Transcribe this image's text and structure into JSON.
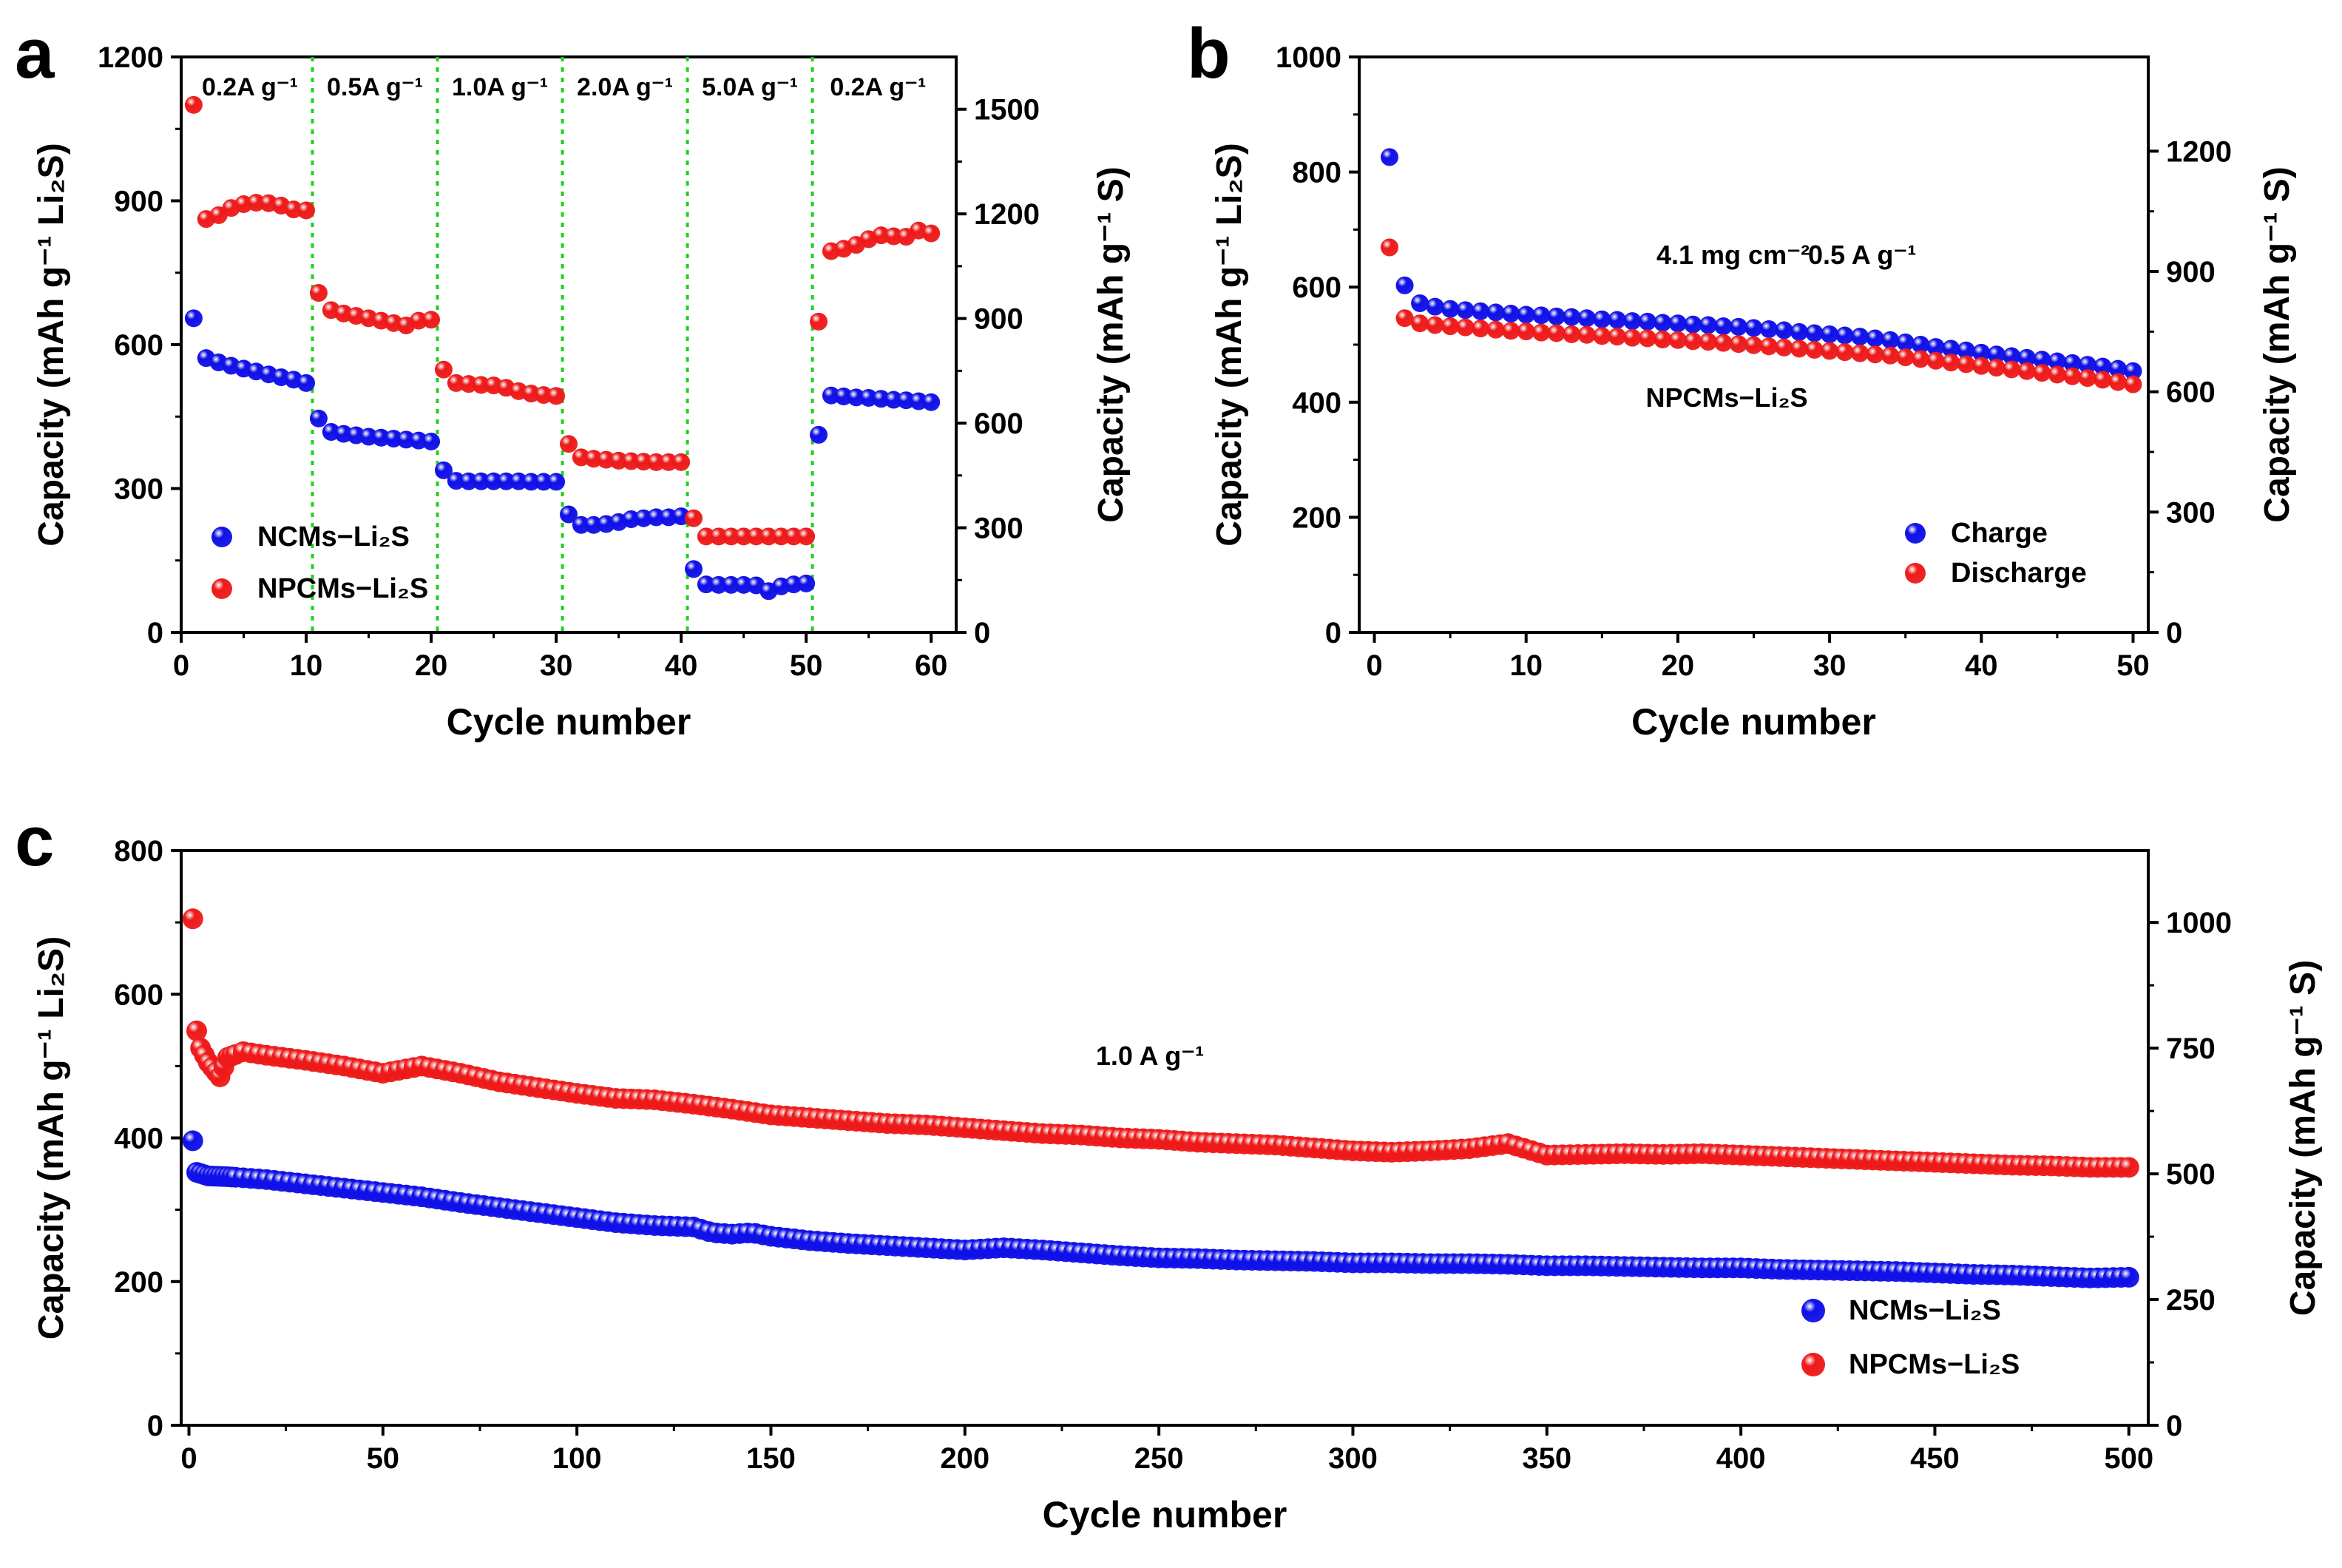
{
  "chart_data": [
    {
      "panel": "a",
      "type": "scatter",
      "xlabel": "Cycle number",
      "ylabel": "Capacity (mAh g⁻¹ Li₂S)",
      "ylabel_right": "Capacity (mAh g⁻¹ S)",
      "xlim": [
        0,
        62
      ],
      "ylim": [
        0,
        1200
      ],
      "ylim_right": [
        0,
        1650
      ],
      "xticks": [
        0,
        10,
        20,
        30,
        40,
        50,
        60
      ],
      "yticks": [
        0,
        300,
        600,
        900,
        1200
      ],
      "yticks_right": [
        0,
        300,
        600,
        900,
        1200,
        1500
      ],
      "rate_dividers": [
        10.5,
        20.5,
        30.5,
        40.5,
        50.5
      ],
      "rate_labels": [
        "0.2A g⁻¹",
        "0.5A g⁻¹",
        "1.0A g⁻¹",
        "2.0A g⁻¹",
        "5.0A g⁻¹",
        "0.2A g⁻¹"
      ],
      "legend": [
        "NCMs−Li₂S",
        "NPCMs−Li₂S"
      ],
      "legend_position": "lower-left",
      "series": [
        {
          "name": "NCMs−Li₂S",
          "color": "#1010e8",
          "x": [
            1,
            2,
            3,
            4,
            5,
            6,
            7,
            8,
            9,
            10,
            11,
            12,
            13,
            14,
            15,
            16,
            17,
            18,
            19,
            20,
            21,
            22,
            23,
            24,
            25,
            26,
            27,
            28,
            29,
            30,
            31,
            32,
            33,
            34,
            35,
            36,
            37,
            38,
            39,
            40,
            41,
            42,
            43,
            44,
            45,
            46,
            47,
            48,
            49,
            50,
            51,
            52,
            53,
            54,
            55,
            56,
            57,
            58,
            59,
            60
          ],
          "values": [
            655,
            572,
            563,
            556,
            550,
            544,
            538,
            532,
            527,
            520,
            446,
            418,
            414,
            411,
            408,
            406,
            404,
            402,
            400,
            398,
            338,
            316,
            315,
            315,
            315,
            315,
            315,
            314,
            314,
            314,
            246,
            224,
            224,
            226,
            230,
            236,
            238,
            240,
            240,
            242,
            132,
            100,
            99,
            99,
            99,
            98,
            86,
            96,
            100,
            102,
            412,
            494,
            492,
            490,
            489,
            487,
            485,
            484,
            482,
            480
          ]
        },
        {
          "name": "NPCMs−Li₂S",
          "color": "#ee1a1a",
          "x": [
            1,
            2,
            3,
            4,
            5,
            6,
            7,
            8,
            9,
            10,
            11,
            12,
            13,
            14,
            15,
            16,
            17,
            18,
            19,
            20,
            21,
            22,
            23,
            24,
            25,
            26,
            27,
            28,
            29,
            30,
            31,
            32,
            33,
            34,
            35,
            36,
            37,
            38,
            39,
            40,
            41,
            42,
            43,
            44,
            45,
            46,
            47,
            48,
            49,
            50,
            51,
            52,
            53,
            54,
            55,
            56,
            57,
            58,
            59,
            60
          ],
          "values": [
            1100,
            862,
            870,
            885,
            893,
            896,
            895,
            890,
            882,
            880,
            708,
            672,
            665,
            660,
            655,
            650,
            645,
            640,
            650,
            652,
            548,
            520,
            518,
            516,
            515,
            510,
            503,
            498,
            495,
            493,
            393,
            365,
            362,
            360,
            358,
            357,
            356,
            355,
            355,
            355,
            238,
            200,
            200,
            200,
            200,
            200,
            200,
            200,
            200,
            200,
            648,
            795,
            800,
            808,
            820,
            828,
            826,
            825,
            838,
            832
          ]
        }
      ]
    },
    {
      "panel": "b",
      "type": "scatter",
      "xlabel": "Cycle number",
      "ylabel": "Capacity (mAh g⁻¹ Li₂S)",
      "ylabel_right": "Capacity (mAh g⁻¹ S)",
      "xlim": [
        -1,
        51
      ],
      "ylim": [
        0,
        1000
      ],
      "ylim_right": [
        0,
        1435
      ],
      "xticks": [
        0,
        10,
        20,
        30,
        40,
        50
      ],
      "yticks": [
        0,
        200,
        400,
        600,
        800,
        1000
      ],
      "yticks_right": [
        0,
        300,
        600,
        900,
        1200
      ],
      "annotations": [
        "4.1 mg cm⁻²",
        "0.5 A g⁻¹",
        "NPCMs−Li₂S"
      ],
      "legend": [
        "Charge",
        "Discharge"
      ],
      "legend_position": "lower-right",
      "series": [
        {
          "name": "Charge",
          "color": "#1010e8",
          "x": [
            1,
            2,
            3,
            4,
            5,
            6,
            7,
            8,
            9,
            10,
            11,
            12,
            13,
            14,
            15,
            16,
            17,
            18,
            19,
            20,
            21,
            22,
            23,
            24,
            25,
            26,
            27,
            28,
            29,
            30,
            31,
            32,
            33,
            34,
            35,
            36,
            37,
            38,
            39,
            40,
            41,
            42,
            43,
            44,
            45,
            46,
            47,
            48,
            49,
            50
          ],
          "values": [
            826,
            603,
            572,
            566,
            562,
            560,
            558,
            556,
            554,
            552,
            551,
            549,
            548,
            546,
            544,
            543,
            541,
            540,
            538,
            537,
            535,
            534,
            532,
            531,
            529,
            527,
            525,
            522,
            520,
            518,
            516,
            514,
            511,
            508,
            504,
            500,
            496,
            493,
            490,
            486,
            483,
            480,
            477,
            474,
            471,
            468,
            465,
            462,
            458,
            454
          ]
        },
        {
          "name": "Discharge",
          "color": "#ee1a1a",
          "x": [
            1,
            2,
            3,
            4,
            5,
            6,
            7,
            8,
            9,
            10,
            11,
            12,
            13,
            14,
            15,
            16,
            17,
            18,
            19,
            20,
            21,
            22,
            23,
            24,
            25,
            26,
            27,
            28,
            29,
            30,
            31,
            32,
            33,
            34,
            35,
            36,
            37,
            38,
            39,
            40,
            41,
            42,
            43,
            44,
            45,
            46,
            47,
            48,
            49,
            50
          ],
          "values": [
            669,
            546,
            537,
            534,
            532,
            530,
            528,
            526,
            524,
            523,
            521,
            520,
            518,
            517,
            515,
            514,
            512,
            511,
            509,
            508,
            506,
            505,
            503,
            501,
            499,
            497,
            495,
            493,
            491,
            489,
            487,
            485,
            483,
            481,
            478,
            475,
            472,
            469,
            466,
            463,
            460,
            457,
            454,
            451,
            448,
            445,
            442,
            439,
            435,
            431
          ]
        }
      ]
    },
    {
      "panel": "c",
      "type": "scatter",
      "xlabel": "Cycle number",
      "ylabel": "Capacity (mAh g⁻¹ Li₂S)",
      "ylabel_right": "Capacity (mAh g⁻¹ S)",
      "xlim": [
        -2,
        505
      ],
      "ylim": [
        0,
        800
      ],
      "ylim_right": [
        0,
        1143
      ],
      "xticks": [
        0,
        50,
        100,
        150,
        200,
        250,
        300,
        350,
        400,
        450,
        500
      ],
      "yticks": [
        0,
        200,
        400,
        600,
        800
      ],
      "yticks_right": [
        0,
        250,
        500,
        750,
        1000
      ],
      "annotations": [
        "1.0 A g⁻¹"
      ],
      "legend": [
        "NCMs−Li₂S",
        "NPCMs−Li₂S"
      ],
      "legend_position": "lower-right",
      "series": [
        {
          "name": "NCMs−Li₂S",
          "color": "#1010e8",
          "point_every": 2,
          "x": [
            1,
            2,
            5,
            10,
            20,
            30,
            40,
            50,
            60,
            70,
            80,
            90,
            100,
            110,
            120,
            130,
            135,
            140,
            145,
            150,
            160,
            170,
            180,
            190,
            200,
            210,
            220,
            230,
            240,
            250,
            260,
            270,
            280,
            290,
            300,
            310,
            320,
            330,
            340,
            350,
            360,
            370,
            380,
            390,
            400,
            410,
            420,
            430,
            440,
            450,
            460,
            470,
            480,
            490,
            500
          ],
          "values": [
            396,
            352,
            347,
            346,
            342,
            336,
            330,
            324,
            318,
            310,
            303,
            296,
            289,
            282,
            278,
            276,
            268,
            266,
            268,
            263,
            257,
            253,
            250,
            247,
            244,
            247,
            244,
            240,
            236,
            233,
            232,
            230,
            229,
            228,
            226,
            226,
            225,
            225,
            224,
            222,
            222,
            221,
            220,
            219,
            219,
            217,
            216,
            215,
            214,
            212,
            210,
            209,
            207,
            205,
            206
          ]
        },
        {
          "name": "NPCMs−Li₂S",
          "color": "#ee1a1a",
          "point_every": 2,
          "x": [
            1,
            2,
            3,
            5,
            8,
            10,
            14,
            20,
            30,
            40,
            50,
            55,
            60,
            70,
            80,
            90,
            100,
            110,
            120,
            130,
            140,
            150,
            160,
            170,
            180,
            190,
            200,
            210,
            220,
            230,
            240,
            250,
            260,
            270,
            280,
            290,
            300,
            310,
            320,
            330,
            340,
            350,
            360,
            370,
            380,
            390,
            400,
            410,
            420,
            430,
            440,
            450,
            460,
            470,
            480,
            490,
            500
          ],
          "values": [
            705,
            549,
            525,
            505,
            485,
            512,
            520,
            515,
            508,
            500,
            490,
            495,
            500,
            490,
            478,
            470,
            462,
            455,
            453,
            447,
            440,
            432,
            428,
            424,
            420,
            418,
            414,
            410,
            406,
            404,
            400,
            398,
            394,
            392,
            390,
            386,
            382,
            380,
            382,
            385,
            392,
            376,
            377,
            378,
            377,
            378,
            376,
            374,
            372,
            370,
            368,
            366,
            364,
            362,
            361,
            359,
            359
          ]
        }
      ]
    }
  ],
  "panel_labels": [
    "a",
    "b",
    "c"
  ]
}
